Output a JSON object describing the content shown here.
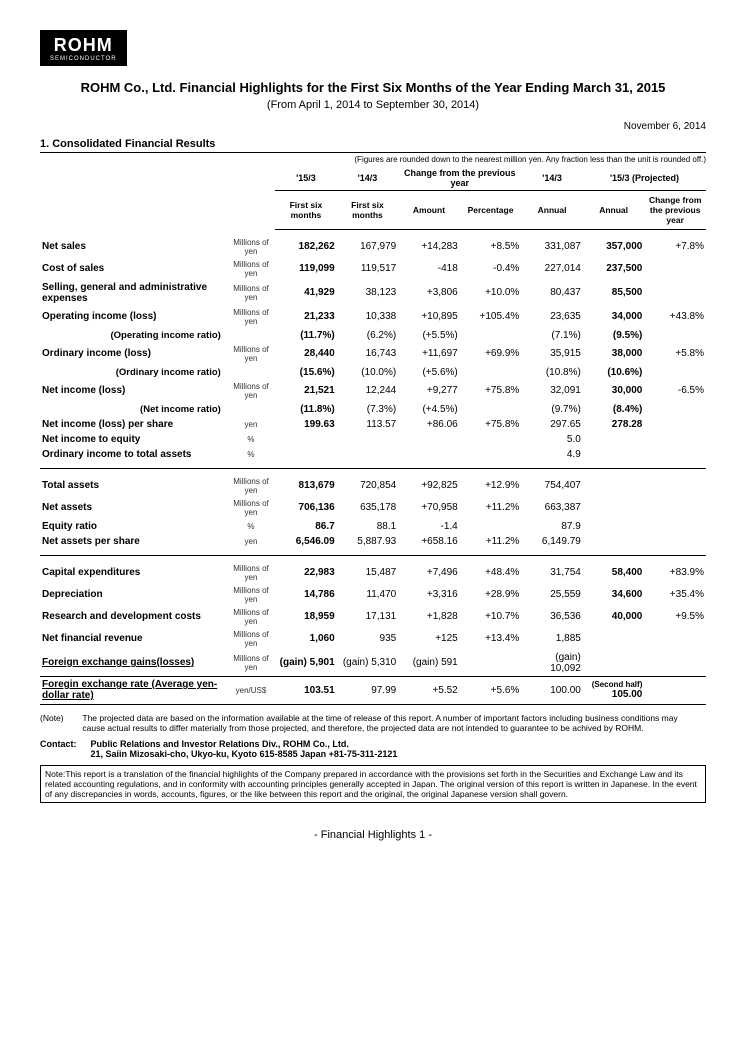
{
  "logo": {
    "main": "ROHM",
    "sub": "SEMICONDUCTOR"
  },
  "title": "ROHM Co., Ltd. Financial Highlights for the First Six Months of the Year Ending March 31, 2015",
  "subtitle": "(From April 1, 2014 to September 30, 2014)",
  "date": "November 6, 2014",
  "section1": "1. Consolidated Financial Results",
  "figures_note": "(Figures are rounded down to the nearest million yen. Any fraction less than the unit is rounded off.)",
  "headers": {
    "p15": "'15/3",
    "p14": "'14/3",
    "change": "Change from the previous year",
    "p14a": "'14/3",
    "proj": "'15/3 (Projected)",
    "fsm": "First six months",
    "fsm2": "First six months",
    "amount": "Amount",
    "pct": "Percentage",
    "annual": "Annual",
    "annual2": "Annual",
    "cpy": "Change from the previous year",
    "second_half": "(Second half)"
  },
  "units": {
    "moy": "Millions of yen",
    "yen": "yen",
    "pct": "%",
    "yus": "yen/US$"
  },
  "rows": {
    "net_sales": {
      "label": "Net sales",
      "unit": "moy",
      "c15": "182,262",
      "c14": "167,979",
      "amt": "+14,283",
      "pct": "+8.5%",
      "ann": "331,087",
      "pann": "357,000",
      "pchg": "+7.8%"
    },
    "cost_sales": {
      "label": "Cost of sales",
      "unit": "moy",
      "c15": "119,099",
      "c14": "119,517",
      "amt": "-418",
      "pct": "-0.4%",
      "ann": "227,014",
      "pann": "237,500",
      "pchg": ""
    },
    "sga": {
      "label": "Selling, general and administrative expenses",
      "unit": "moy",
      "c15": "41,929",
      "c14": "38,123",
      "amt": "+3,806",
      "pct": "+10.0%",
      "ann": "80,437",
      "pann": "85,500",
      "pchg": ""
    },
    "op_income": {
      "label": "Operating income (loss)",
      "unit": "moy",
      "c15": "21,233",
      "c14": "10,338",
      "amt": "+10,895",
      "pct": "+105.4%",
      "ann": "23,635",
      "pann": "34,000",
      "pchg": "+43.8%"
    },
    "op_ratio": {
      "label": "(Operating income ratio)",
      "unit": "",
      "c15": "(11.7%)",
      "c14": "(6.2%)",
      "amt": "(+5.5%)",
      "pct": "",
      "ann": "(7.1%)",
      "pann": "(9.5%)",
      "pchg": ""
    },
    "ord_income": {
      "label": "Ordinary income (loss)",
      "unit": "moy",
      "c15": "28,440",
      "c14": "16,743",
      "amt": "+11,697",
      "pct": "+69.9%",
      "ann": "35,915",
      "pann": "38,000",
      "pchg": "+5.8%"
    },
    "ord_ratio": {
      "label": "(Ordinary income ratio)",
      "unit": "",
      "c15": "(15.6%)",
      "c14": "(10.0%)",
      "amt": "(+5.6%)",
      "pct": "",
      "ann": "(10.8%)",
      "pann": "(10.6%)",
      "pchg": ""
    },
    "net_income": {
      "label": "Net income (loss)",
      "unit": "moy",
      "c15": "21,521",
      "c14": "12,244",
      "amt": "+9,277",
      "pct": "+75.8%",
      "ann": "32,091",
      "pann": "30,000",
      "pchg": "-6.5%"
    },
    "net_ratio": {
      "label": "(Net income ratio)",
      "unit": "",
      "c15": "(11.8%)",
      "c14": "(7.3%)",
      "amt": "(+4.5%)",
      "pct": "",
      "ann": "(9.7%)",
      "pann": "(8.4%)",
      "pchg": ""
    },
    "ni_share": {
      "label": "Net income (loss) per share",
      "unit": "yen",
      "c15": "199.63",
      "c14": "113.57",
      "amt": "+86.06",
      "pct": "+75.8%",
      "ann": "297.65",
      "pann": "278.28",
      "pchg": ""
    },
    "ni_equity": {
      "label": "Net income to equity",
      "unit": "pct",
      "c15": "",
      "c14": "",
      "amt": "",
      "pct": "",
      "ann": "5.0",
      "pann": "",
      "pchg": ""
    },
    "ord_assets": {
      "label": "Ordinary income to total assets",
      "unit": "pct",
      "c15": "",
      "c14": "",
      "amt": "",
      "pct": "",
      "ann": "4.9",
      "pann": "",
      "pchg": ""
    },
    "total_assets": {
      "label": "Total assets",
      "unit": "moy",
      "c15": "813,679",
      "c14": "720,854",
      "amt": "+92,825",
      "pct": "+12.9%",
      "ann": "754,407",
      "pann": "",
      "pchg": ""
    },
    "net_assets": {
      "label": "Net assets",
      "unit": "moy",
      "c15": "706,136",
      "c14": "635,178",
      "amt": "+70,958",
      "pct": "+11.2%",
      "ann": "663,387",
      "pann": "",
      "pchg": ""
    },
    "equity_ratio": {
      "label": "Equity ratio",
      "unit": "pct",
      "c15": "86.7",
      "c14": "88.1",
      "amt": "-1.4",
      "pct": "",
      "ann": "87.9",
      "pann": "",
      "pchg": ""
    },
    "na_share": {
      "label": "Net assets per share",
      "unit": "yen",
      "c15": "6,546.09",
      "c14": "5,887.93",
      "amt": "+658.16",
      "pct": "+11.2%",
      "ann": "6,149.79",
      "pann": "",
      "pchg": ""
    },
    "capex": {
      "label": "Capital expenditures",
      "unit": "moy",
      "c15": "22,983",
      "c14": "15,487",
      "amt": "+7,496",
      "pct": "+48.4%",
      "ann": "31,754",
      "pann": "58,400",
      "pchg": "+83.9%"
    },
    "depr": {
      "label": "Depreciation",
      "unit": "moy",
      "c15": "14,786",
      "c14": "11,470",
      "amt": "+3,316",
      "pct": "+28.9%",
      "ann": "25,559",
      "pann": "34,600",
      "pchg": "+35.4%"
    },
    "rnd": {
      "label": "Research and development costs",
      "unit": "moy",
      "c15": "18,959",
      "c14": "17,131",
      "amt": "+1,828",
      "pct": "+10.7%",
      "ann": "36,536",
      "pann": "40,000",
      "pchg": "+9.5%"
    },
    "nfr": {
      "label": "Net financial revenue",
      "unit": "moy",
      "c15": "1,060",
      "c14": "935",
      "amt": "+125",
      "pct": "+13.4%",
      "ann": "1,885",
      "pann": "",
      "pchg": ""
    },
    "fx_gains": {
      "label": "Foreign exchange gains(losses)",
      "unit": "moy",
      "c15": "(gain) 5,901",
      "c14": "(gain) 5,310",
      "amt": "(gain) 591",
      "pct": "",
      "ann": "(gain) 10,092",
      "pann": "",
      "pchg": ""
    },
    "fx_rate": {
      "label": "Foregin exchange rate (Average yen-dollar rate)",
      "unit": "yus",
      "c15": "103.51",
      "c14": "97.99",
      "amt": "+5.52",
      "pct": "+5.6%",
      "ann": "100.00",
      "pann": "105.00",
      "pchg": ""
    }
  },
  "note_label": "(Note)",
  "note_text": "The projected data are based on the information available at the time of release of this report. A number of important factors including business conditions may cause actual results to differ materially from those projected, and therefore, the projected data are not intended to guarantee to be achived by ROHM.",
  "contact_label": "Contact:",
  "contact_line1": "Public Relations and Investor Relations Div., ROHM Co., Ltd.",
  "contact_line2": "21, Saiin Mizosaki-cho, Ukyo-ku, Kyoto 615-8585 Japan   +81-75-311-2121",
  "boxed_note": "Note:This report is a translation of the financial highlights of the Company prepared in accordance with the provisions set forth in the Securities and Exchange Law and its related accounting regulations, and in conformity with accounting principles generally accepted in Japan. The original version of this report is written in Japanese. In the event of any discrepancies in words, accounts, figures, or the like between this report and the original, the original Japanese version shall govern.",
  "footer": "- Financial Highlights 1 -"
}
